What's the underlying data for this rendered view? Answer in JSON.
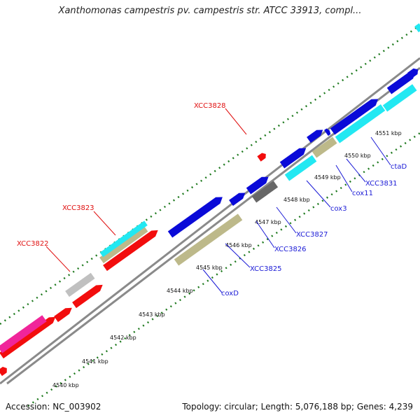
{
  "title": "Xanthomonas campestris pv. campestris str. ATCC 33913, compl...",
  "accession": "Accession: NC_003902",
  "stats": "Topology: circular; Length: 5,076,188 bp; Genes: 4,239",
  "colors": {
    "blue": "#0a0ad8",
    "red": "#f20d0d",
    "cyan": "#22e8f2",
    "khaki": "#bdb98a",
    "gray": "#676767",
    "silver": "#c0c0c0",
    "magenta": "#f0259a",
    "tick_green": "#1f7a1f",
    "backbone": "#8a8a8a"
  },
  "ticks": [
    "4540 kbp",
    "4541 kbp",
    "4542 kbp",
    "4543 kbp",
    "4544 kbp",
    "4545 kbp",
    "4546 kbp",
    "4547 kbp",
    "4548 kbp",
    "4549 kbp",
    "4550 kbp",
    "4551 kbp"
  ],
  "gene_labels_blue": [
    "coxD",
    "XCC3825",
    "XCC3826",
    "XCC3827",
    "cox3",
    "cox11",
    "XCC3831",
    "ctaD"
  ],
  "gene_labels_red": [
    "XCC3822",
    "XCC3823",
    "XCC3828"
  ]
}
